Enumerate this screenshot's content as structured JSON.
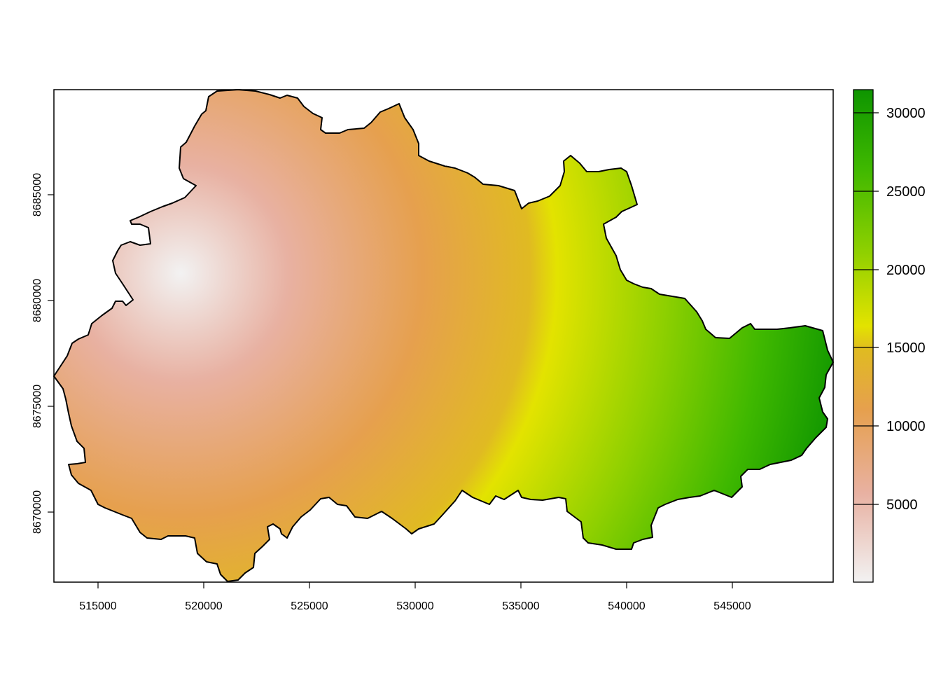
{
  "map": {
    "x_ticks": [
      "515000",
      "520000",
      "525000",
      "530000",
      "535000",
      "540000",
      "545000"
    ],
    "y_ticks": [
      "8670000",
      "8675000",
      "8680000",
      "8685000"
    ]
  },
  "legend": {
    "ticks": [
      "5000",
      "10000",
      "15000",
      "20000",
      "25000",
      "30000"
    ],
    "colors": [
      "#f2f2f2",
      "#e8a48a",
      "#e8a33f",
      "#e6e600",
      "#7dd000",
      "#009900"
    ]
  }
}
